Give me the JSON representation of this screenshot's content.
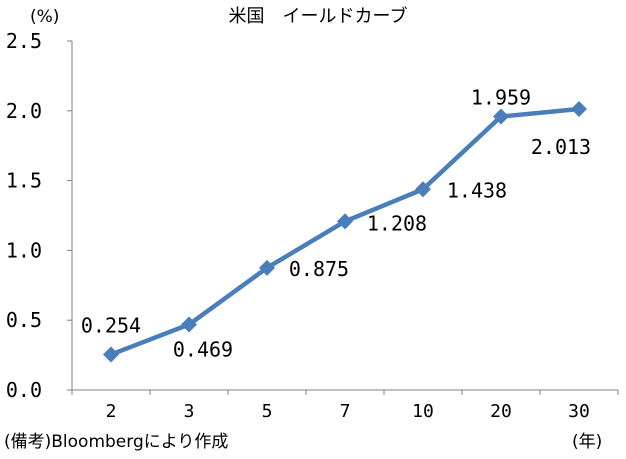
{
  "chart_data": {
    "type": "line",
    "title": "米国　イールドカーブ",
    "y_unit": "(%)",
    "x_unit": "(年)",
    "source_note": "(備考)Bloombergにより作成",
    "categories": [
      "2",
      "3",
      "5",
      "7",
      "10",
      "20",
      "30"
    ],
    "series": [
      {
        "values": [
          0.254,
          0.469,
          0.875,
          1.208,
          1.438,
          1.959,
          2.013
        ],
        "labels": [
          "0.254",
          "0.469",
          "0.875",
          "1.208",
          "1.438",
          "1.959",
          "2.013"
        ],
        "color": "#4a7ebb",
        "marker": "diamond"
      }
    ],
    "ylim": [
      0.0,
      2.5
    ],
    "y_ticks": [
      "0.0",
      "0.5",
      "1.0",
      "1.5",
      "2.0",
      "2.5"
    ],
    "grid": false,
    "legend": "none"
  }
}
